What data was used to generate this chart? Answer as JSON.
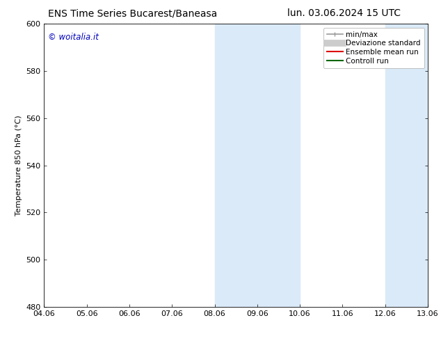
{
  "title_left": "ENS Time Series Bucarest/Baneasa",
  "title_right": "lun. 03.06.2024 15 UTC",
  "ylabel": "Temperature 850 hPa (°C)",
  "watermark": "© woitalia.it",
  "watermark_color": "#0000bb",
  "xtick_labels": [
    "04.06",
    "05.06",
    "06.06",
    "07.06",
    "08.06",
    "09.06",
    "10.06",
    "11.06",
    "12.06",
    "13.06"
  ],
  "ylim": [
    480,
    600
  ],
  "ytick_values": [
    480,
    500,
    520,
    540,
    560,
    580,
    600
  ],
  "shaded_regions": [
    {
      "xstart": 4,
      "xend": 6
    },
    {
      "xstart": 8,
      "xend": 9
    }
  ],
  "shade_color": "#daeaf8",
  "background_color": "#ffffff",
  "legend_entries": [
    {
      "label": "min/max",
      "color": "#999999",
      "lw": 1.2
    },
    {
      "label": "Deviazione standard",
      "color": "#cccccc",
      "lw": 7
    },
    {
      "label": "Ensemble mean run",
      "color": "#dd0000",
      "lw": 1.5
    },
    {
      "label": "Controll run",
      "color": "#006600",
      "lw": 1.5
    }
  ],
  "title_fontsize": 10,
  "tick_fontsize": 8,
  "ylabel_fontsize": 8,
  "legend_fontsize": 7.5
}
